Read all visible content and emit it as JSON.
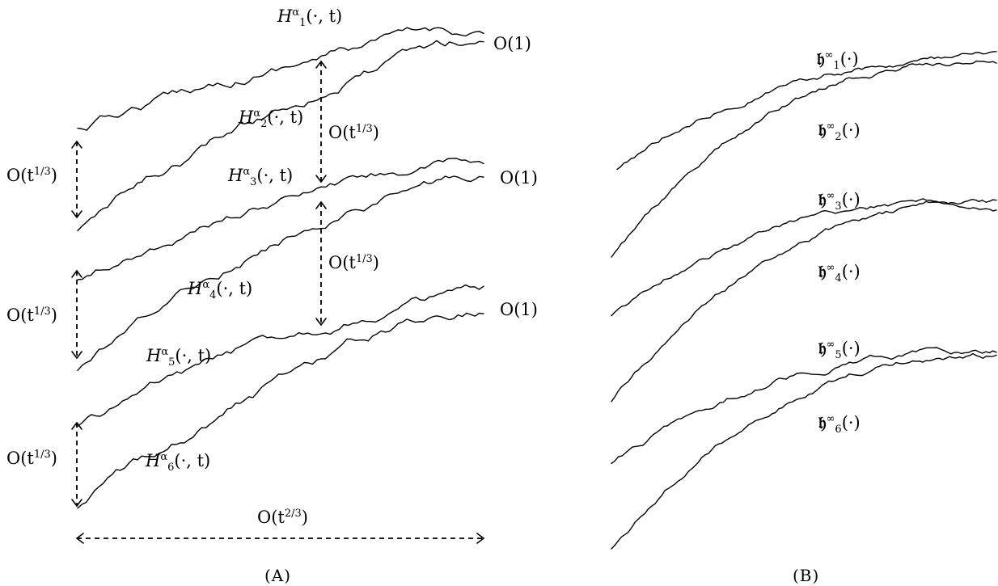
{
  "panel_a": {
    "caption": "(A)",
    "curve_labels": [
      {
        "base": "H",
        "sub": "1",
        "sup": "α",
        "args": "(·, t)"
      },
      {
        "base": "H",
        "sub": "2",
        "sup": "α",
        "args": "(·, t)"
      },
      {
        "base": "H",
        "sub": "3",
        "sup": "α",
        "args": "(·, t)"
      },
      {
        "base": "H",
        "sub": "4",
        "sup": "α",
        "args": "(·, t)"
      },
      {
        "base": "H",
        "sub": "5",
        "sup": "α",
        "args": "(·, t)"
      },
      {
        "base": "H",
        "sub": "6",
        "sup": "α",
        "args": "(·, t)"
      }
    ],
    "right_labels": [
      "O(1)",
      "O(1)",
      "O(1)"
    ],
    "left_gap_labels": [
      "O(t",
      "O(t",
      "O(t"
    ],
    "left_gap_exponent": "1/3",
    "middle_gap_labels": [
      "O(t",
      "O(t"
    ],
    "middle_gap_exponent": "1/3",
    "bottom_span_label": "O(t",
    "bottom_span_exponent": "2/3"
  },
  "panel_b": {
    "caption": "(B)",
    "curve_labels": [
      {
        "base": "𝔥",
        "sub": "1",
        "sup": "∞",
        "args": "(·)"
      },
      {
        "base": "𝔥",
        "sub": "2",
        "sup": "∞",
        "args": "(·)"
      },
      {
        "base": "𝔥",
        "sub": "3",
        "sup": "∞",
        "args": "(·)"
      },
      {
        "base": "𝔥",
        "sub": "4",
        "sup": "∞",
        "args": "(·)"
      },
      {
        "base": "𝔥",
        "sub": "5",
        "sup": "∞",
        "args": "(·)"
      },
      {
        "base": "𝔥",
        "sub": "6",
        "sup": "∞",
        "args": "(·)"
      }
    ]
  }
}
